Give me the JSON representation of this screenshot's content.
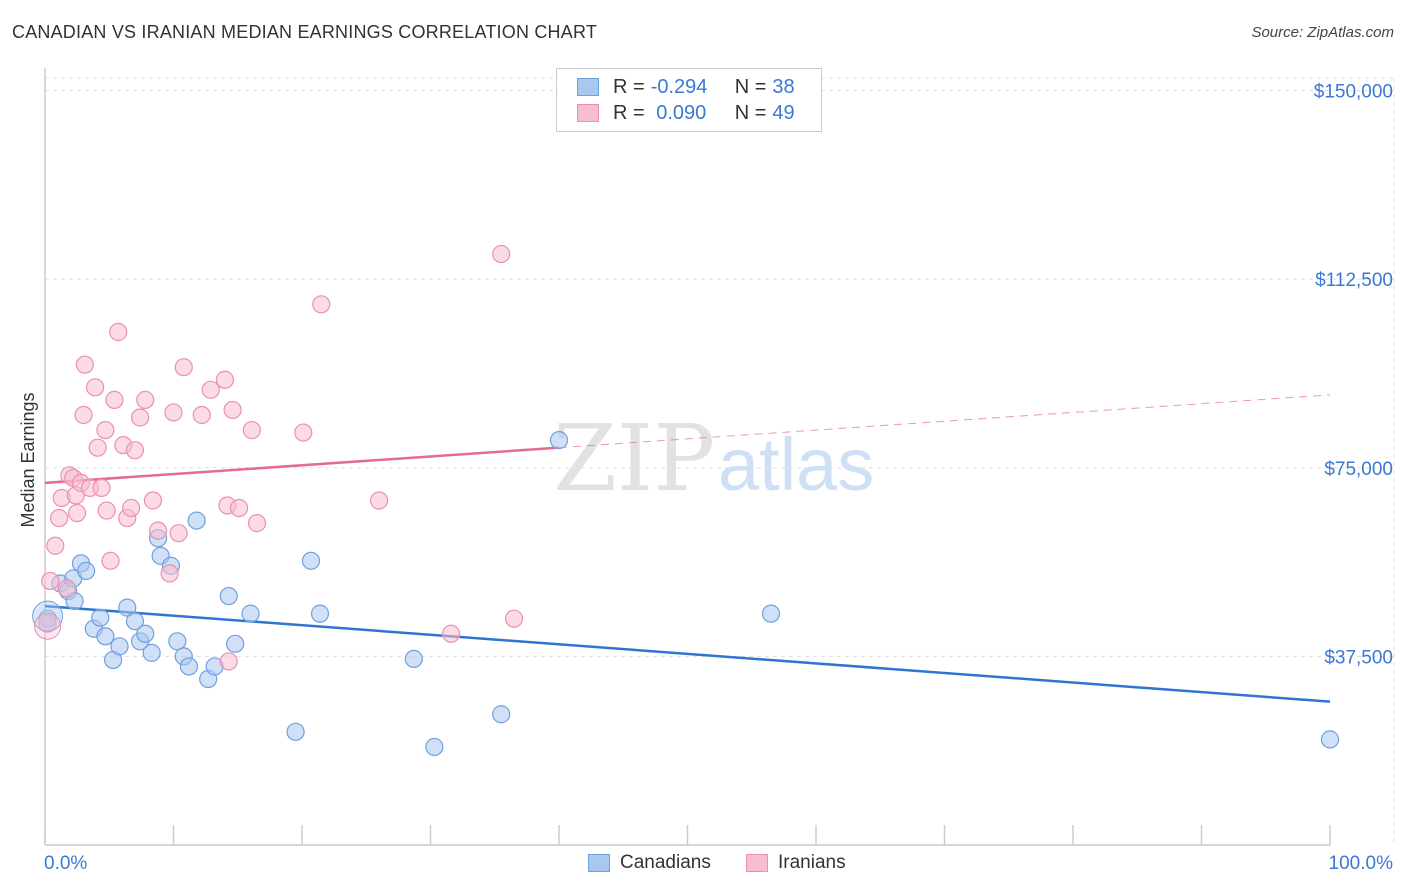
{
  "title": "CANADIAN VS IRANIAN MEDIAN EARNINGS CORRELATION CHART",
  "source": "Source: ZipAtlas.com",
  "watermark": {
    "zip": "ZIP",
    "atlas": "atlas"
  },
  "stats": [
    {
      "r_label": "R =",
      "r_value": "-0.294",
      "n_label": "N =",
      "n_value": "38",
      "color": "#a9c8f0",
      "border": "#6fa0e0"
    },
    {
      "r_label": "R =",
      "r_value": " 0.090",
      "n_label": "N =",
      "n_value": "49",
      "color": "#f7bdd0",
      "border": "#ec90ae"
    }
  ],
  "legend": {
    "canadians": "Canadians",
    "iranians": "Iranians"
  },
  "colors": {
    "canadians_fill": "#a9c8f0",
    "canadians_line": "#2f74cf",
    "iranians_fill": "#f7bdd0",
    "iranians_line": "#e36b93",
    "tick_text": "#3a78d4",
    "grid": "#dddddd"
  },
  "chart_data": {
    "type": "scatter",
    "xlabel": "",
    "ylabel": "Median Earnings",
    "xlim": [
      0,
      100
    ],
    "ylim": [
      0,
      152500
    ],
    "x_tick_labels": [
      "0.0%",
      "100.0%"
    ],
    "y_ticks": [
      37500,
      75000,
      112500,
      150000
    ],
    "y_tick_labels": [
      "$37,500",
      "$75,000",
      "$112,500",
      "$150,000"
    ],
    "series": [
      {
        "name": "Canadians",
        "points": [
          [
            0.2,
            45000
          ],
          [
            1.2,
            52000
          ],
          [
            1.8,
            50500
          ],
          [
            2.2,
            53000
          ],
          [
            2.3,
            48500
          ],
          [
            2.8,
            56000
          ],
          [
            3.2,
            54500
          ],
          [
            3.8,
            43000
          ],
          [
            4.3,
            45200
          ],
          [
            4.7,
            41500
          ],
          [
            5.3,
            36800
          ],
          [
            5.8,
            39500
          ],
          [
            6.4,
            47200
          ],
          [
            7.0,
            44500
          ],
          [
            7.4,
            40500
          ],
          [
            7.8,
            42000
          ],
          [
            8.3,
            38200
          ],
          [
            8.8,
            61000
          ],
          [
            9.0,
            57500
          ],
          [
            9.8,
            55500
          ],
          [
            10.3,
            40500
          ],
          [
            10.8,
            37500
          ],
          [
            11.2,
            35500
          ],
          [
            11.8,
            64500
          ],
          [
            12.7,
            33000
          ],
          [
            13.2,
            35500
          ],
          [
            14.3,
            49500
          ],
          [
            14.8,
            40000
          ],
          [
            16.0,
            46000
          ],
          [
            19.5,
            22500
          ],
          [
            20.7,
            56500
          ],
          [
            21.4,
            46000
          ],
          [
            28.7,
            37000
          ],
          [
            30.3,
            19500
          ],
          [
            35.5,
            26000
          ],
          [
            40.0,
            80500
          ],
          [
            56.5,
            46000
          ],
          [
            100.0,
            21000
          ]
        ]
      },
      {
        "name": "Iranians",
        "points": [
          [
            0.2,
            44000
          ],
          [
            0.4,
            52500
          ],
          [
            0.8,
            59500
          ],
          [
            1.1,
            65000
          ],
          [
            1.3,
            69000
          ],
          [
            1.7,
            51000
          ],
          [
            1.9,
            73500
          ],
          [
            2.2,
            73000
          ],
          [
            2.4,
            69500
          ],
          [
            2.5,
            66000
          ],
          [
            2.8,
            72000
          ],
          [
            3.0,
            85500
          ],
          [
            3.1,
            95500
          ],
          [
            3.5,
            71000
          ],
          [
            3.9,
            91000
          ],
          [
            4.1,
            79000
          ],
          [
            4.4,
            71000
          ],
          [
            4.7,
            82500
          ],
          [
            4.8,
            66500
          ],
          [
            5.1,
            56500
          ],
          [
            5.4,
            88500
          ],
          [
            5.7,
            102000
          ],
          [
            6.1,
            79500
          ],
          [
            6.4,
            65000
          ],
          [
            6.7,
            67000
          ],
          [
            7.0,
            78500
          ],
          [
            7.4,
            85000
          ],
          [
            7.8,
            88500
          ],
          [
            8.4,
            68500
          ],
          [
            8.8,
            62500
          ],
          [
            9.7,
            54000
          ],
          [
            10.0,
            86000
          ],
          [
            10.4,
            62000
          ],
          [
            10.8,
            95000
          ],
          [
            12.2,
            85500
          ],
          [
            12.9,
            90500
          ],
          [
            14.0,
            92500
          ],
          [
            14.2,
            67500
          ],
          [
            14.3,
            36500
          ],
          [
            14.6,
            86500
          ],
          [
            15.1,
            67000
          ],
          [
            16.1,
            82500
          ],
          [
            16.5,
            64000
          ],
          [
            20.1,
            82000
          ],
          [
            21.5,
            107500
          ],
          [
            26.0,
            68500
          ],
          [
            31.6,
            42000
          ],
          [
            35.5,
            117500
          ],
          [
            36.5,
            45000
          ]
        ]
      }
    ],
    "trend_lines": [
      {
        "name": "Canadians",
        "x": [
          0,
          100
        ],
        "y": [
          47500,
          28500
        ],
        "style": "solid"
      },
      {
        "name": "Iranians",
        "x": [
          0,
          40
        ],
        "y": [
          72000,
          79000
        ],
        "style": "solid"
      },
      {
        "name": "Iranians",
        "x": [
          40,
          100
        ],
        "y": [
          79000,
          89500
        ],
        "style": "dashed"
      }
    ]
  }
}
